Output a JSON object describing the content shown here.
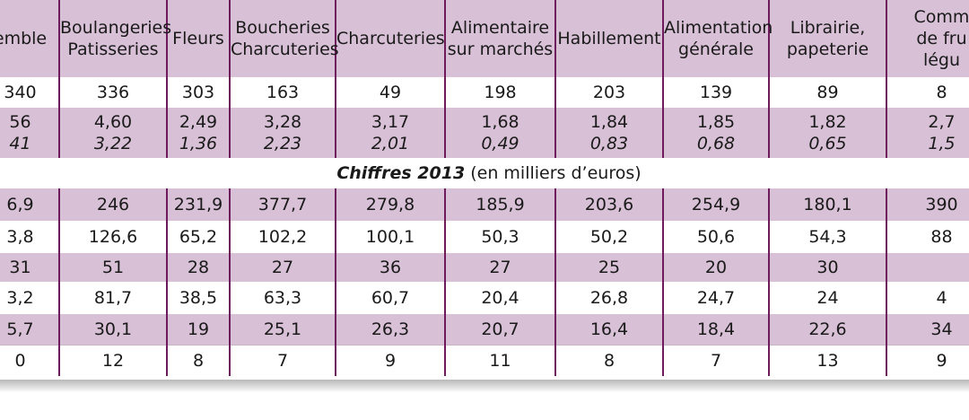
{
  "headers": [
    "emble",
    "Boulangeries\nPatisseries",
    "Fleurs",
    "Boucheries\nCharcuteries",
    "Charcuteries",
    "Alimentaire\nsur marchés",
    "Habillement",
    "Alimentation\ngénérale",
    "Librairie,\npapeterie",
    "Comm\nde fru\nlégu"
  ],
  "row_count": [
    "340",
    "336",
    "303",
    "163",
    "49",
    "198",
    "203",
    "139",
    "89",
    "8"
  ],
  "row_ratio_a": [
    "56",
    "4,60",
    "2,49",
    "3,28",
    "3,17",
    "1,68",
    "1,84",
    "1,85",
    "1,82",
    "2,7"
  ],
  "row_ratio_b": [
    "41",
    "3,22",
    "1,36",
    "2,23",
    "2,01",
    "0,49",
    "0,83",
    "0,68",
    "0,65",
    "1,5"
  ],
  "section": {
    "title": "Chiffres 2013",
    "subtitle": " (en milliers d’euros)"
  },
  "rows": [
    [
      "6,9",
      "246",
      "231,9",
      "377,7",
      "279,8",
      "185,9",
      "203,6",
      "254,9",
      "180,1",
      "390"
    ],
    [
      "3,8",
      "126,6",
      "65,2",
      "102,2",
      "100,1",
      "50,3",
      "50,2",
      "50,6",
      "54,3",
      "88"
    ],
    [
      "31",
      "51",
      "28",
      "27",
      "36",
      "27",
      "25",
      "20",
      "30",
      ""
    ],
    [
      "3,2",
      "81,7",
      "38,5",
      "63,3",
      "60,7",
      "20,4",
      "26,8",
      "24,7",
      "24",
      "4"
    ],
    [
      "5,7",
      "30,1",
      "19",
      "25,1",
      "26,3",
      "20,7",
      "16,4",
      "18,4",
      "22,6",
      "34"
    ],
    [
      "0",
      "12",
      "8",
      "7",
      "9",
      "11",
      "8",
      "7",
      "13",
      "9"
    ]
  ]
}
